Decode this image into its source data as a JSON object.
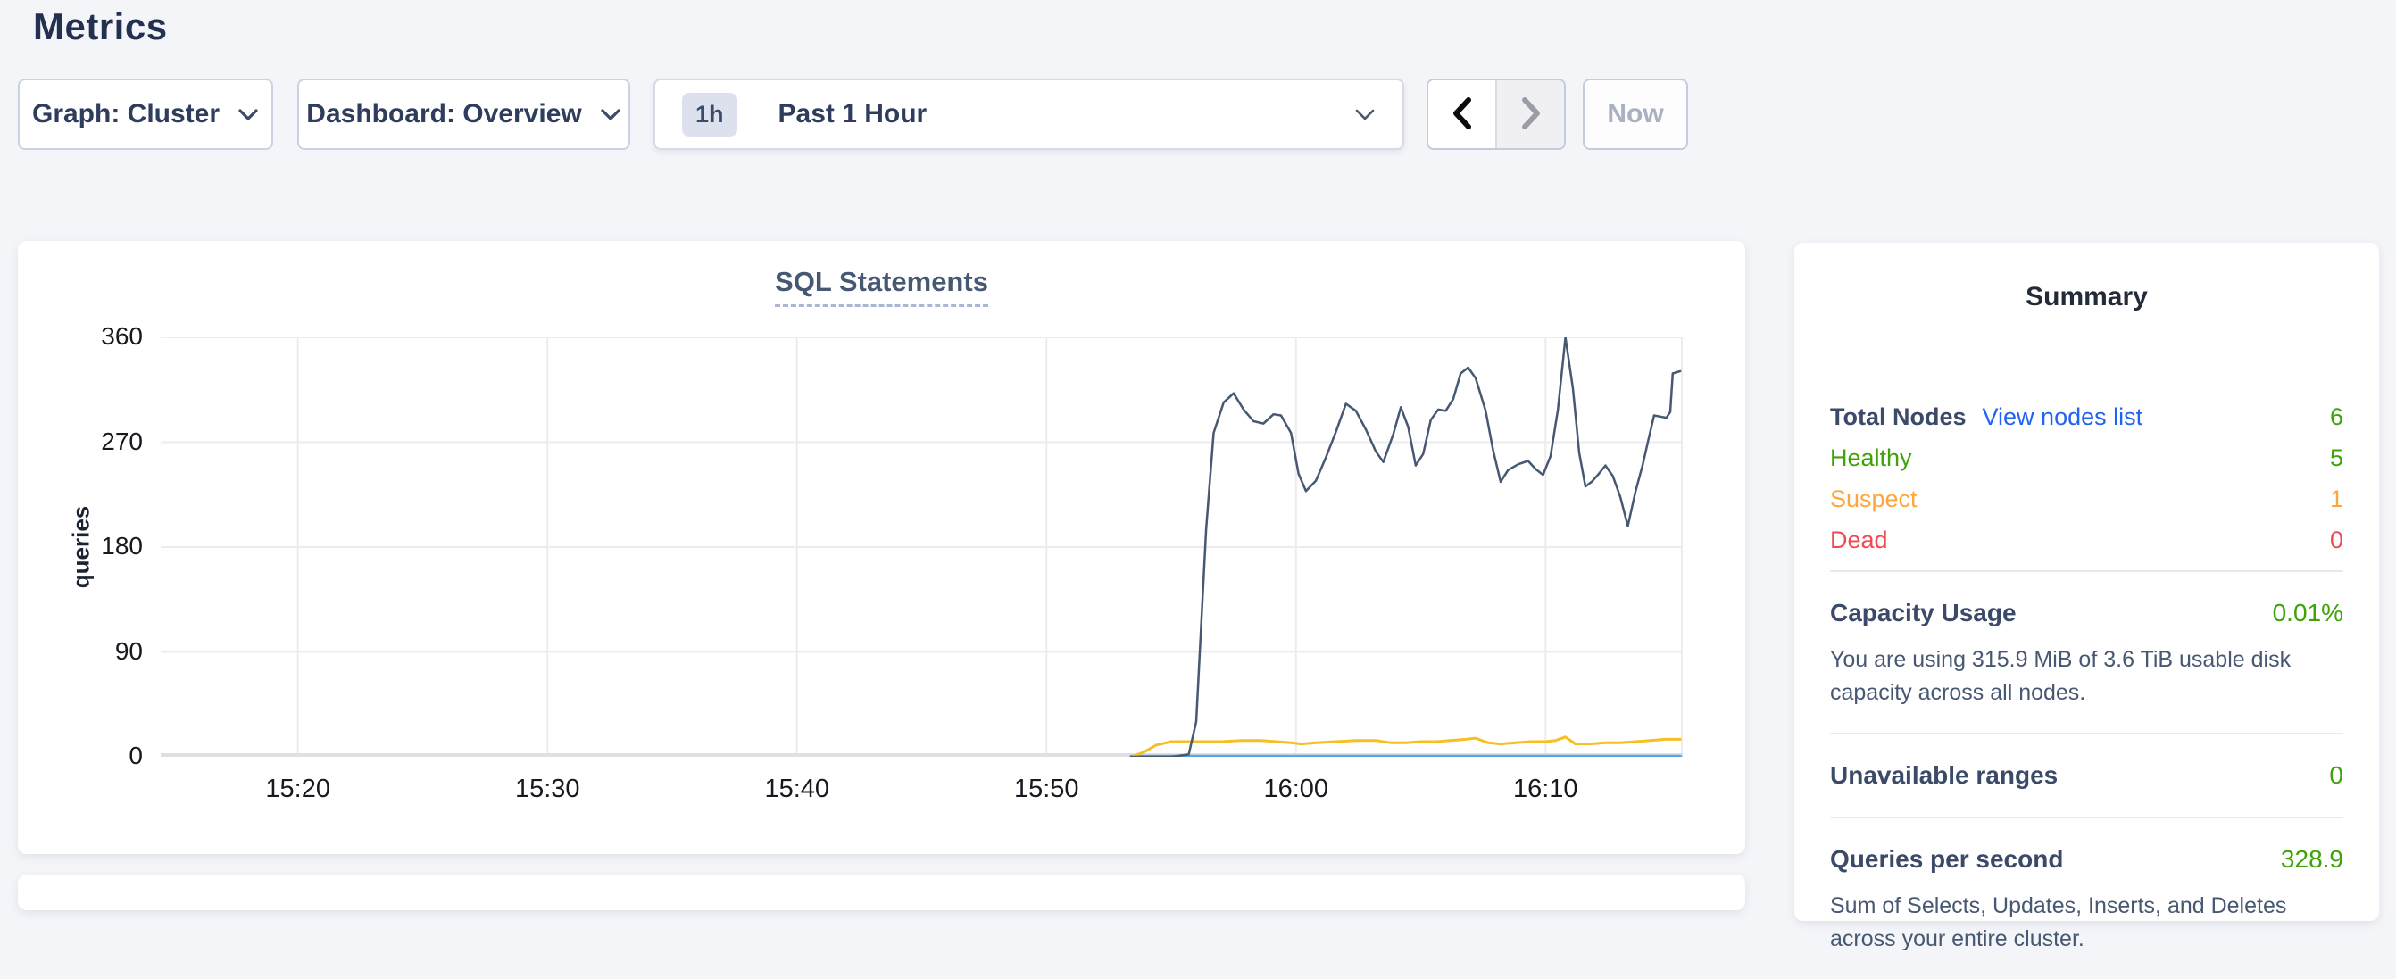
{
  "page": {
    "title": "Metrics"
  },
  "colors": {
    "accent_link": "#2263f0",
    "green": "#3ea308",
    "orange": "#ffa53d",
    "red": "#f04a54",
    "series_navy": "#475872",
    "series_yellow": "#f6bf26",
    "series_blue": "#5aa6dc"
  },
  "toolbar": {
    "graph_dropdown": {
      "label": "Graph: Cluster"
    },
    "dashboard_dropdown": {
      "label": "Dashboard: Overview"
    },
    "time_selector": {
      "badge": "1h",
      "label": "Past 1 Hour"
    },
    "now_label": "Now"
  },
  "chart": {
    "chart_data": {
      "type": "line",
      "title": "SQL Statements",
      "ylabel": "queries",
      "ylim": [
        0,
        360
      ],
      "yticks": [
        0,
        90,
        180,
        270,
        360
      ],
      "xlim": [
        14.5,
        75.5
      ],
      "xticks": [
        {
          "x": 20,
          "label": "15:20"
        },
        {
          "x": 30,
          "label": "15:30"
        },
        {
          "x": 40,
          "label": "15:40"
        },
        {
          "x": 50,
          "label": "15:50"
        },
        {
          "x": 60,
          "label": "16:00"
        },
        {
          "x": 70,
          "label": "16:10"
        }
      ],
      "grid": true,
      "legend": "none",
      "series": [
        {
          "name": "series-blue-flat",
          "color": "#5aa6dc",
          "stroke_width": 4.5,
          "points": [
            [
              53.4,
              0
            ],
            [
              75.4,
              0
            ]
          ]
        },
        {
          "name": "series-yellow",
          "color": "#f6bf26",
          "stroke_width": 3,
          "points": [
            [
              53.4,
              0
            ],
            [
              53.9,
              4
            ],
            [
              54.4,
              10
            ],
            [
              55.0,
              13
            ],
            [
              55.6,
              13
            ],
            [
              56.2,
              13
            ],
            [
              57.0,
              13
            ],
            [
              57.8,
              14
            ],
            [
              58.6,
              14
            ],
            [
              59.2,
              13
            ],
            [
              59.8,
              12
            ],
            [
              60.2,
              11
            ],
            [
              60.8,
              12
            ],
            [
              61.6,
              13
            ],
            [
              62.4,
              14
            ],
            [
              63.2,
              14
            ],
            [
              63.8,
              12
            ],
            [
              64.4,
              12
            ],
            [
              65.0,
              13
            ],
            [
              65.6,
              13
            ],
            [
              66.2,
              14
            ],
            [
              66.8,
              15
            ],
            [
              67.2,
              16
            ],
            [
              67.7,
              12
            ],
            [
              68.2,
              11
            ],
            [
              68.8,
              12
            ],
            [
              69.4,
              13
            ],
            [
              70.0,
              13
            ],
            [
              70.4,
              14
            ],
            [
              70.8,
              17
            ],
            [
              71.2,
              11
            ],
            [
              71.8,
              11
            ],
            [
              72.4,
              12
            ],
            [
              73.0,
              12
            ],
            [
              73.6,
              13
            ],
            [
              74.2,
              14
            ],
            [
              74.8,
              15
            ],
            [
              75.4,
              15
            ]
          ]
        },
        {
          "name": "series-navy",
          "color": "#475872",
          "stroke_width": 2.5,
          "points": [
            [
              53.4,
              0
            ],
            [
              54.2,
              0
            ],
            [
              55.0,
              0
            ],
            [
              55.7,
              2
            ],
            [
              56.0,
              30
            ],
            [
              56.4,
              195
            ],
            [
              56.7,
              278
            ],
            [
              57.1,
              304
            ],
            [
              57.5,
              312
            ],
            [
              57.9,
              298
            ],
            [
              58.3,
              288
            ],
            [
              58.7,
              286
            ],
            [
              59.1,
              294
            ],
            [
              59.4,
              293
            ],
            [
              59.8,
              278
            ],
            [
              60.1,
              243
            ],
            [
              60.4,
              228
            ],
            [
              60.8,
              237
            ],
            [
              61.2,
              257
            ],
            [
              61.6,
              279
            ],
            [
              62.0,
              303
            ],
            [
              62.4,
              297
            ],
            [
              62.8,
              281
            ],
            [
              63.2,
              262
            ],
            [
              63.5,
              253
            ],
            [
              63.9,
              277
            ],
            [
              64.2,
              300
            ],
            [
              64.5,
              283
            ],
            [
              64.8,
              250
            ],
            [
              65.1,
              260
            ],
            [
              65.4,
              289
            ],
            [
              65.7,
              298
            ],
            [
              66.0,
              297
            ],
            [
              66.3,
              307
            ],
            [
              66.6,
              329
            ],
            [
              66.9,
              334
            ],
            [
              67.2,
              325
            ],
            [
              67.6,
              297
            ],
            [
              67.9,
              263
            ],
            [
              68.2,
              236
            ],
            [
              68.5,
              246
            ],
            [
              68.9,
              251
            ],
            [
              69.3,
              254
            ],
            [
              69.6,
              247
            ],
            [
              69.9,
              242
            ],
            [
              70.2,
              258
            ],
            [
              70.5,
              298
            ],
            [
              70.8,
              360
            ],
            [
              71.1,
              316
            ],
            [
              71.35,
              261
            ],
            [
              71.6,
              232
            ],
            [
              71.85,
              236
            ],
            [
              72.1,
              242
            ],
            [
              72.4,
              250
            ],
            [
              72.7,
              241
            ],
            [
              73.0,
              223
            ],
            [
              73.3,
              198
            ],
            [
              73.6,
              227
            ],
            [
              73.9,
              251
            ],
            [
              74.1,
              270
            ],
            [
              74.35,
              293
            ],
            [
              74.6,
              292
            ],
            [
              74.85,
              291
            ],
            [
              75.0,
              296
            ],
            [
              75.1,
              329
            ],
            [
              75.4,
              331
            ]
          ]
        }
      ]
    }
  },
  "summary": {
    "title": "Summary",
    "node_rows": [
      {
        "label": "Total Nodes",
        "link": "View nodes list",
        "value": "6",
        "label_style": "bold-dark",
        "value_style": "green"
      },
      {
        "label": "Healthy",
        "value": "5",
        "label_style": "green",
        "value_style": "green"
      },
      {
        "label": "Suspect",
        "value": "1",
        "label_style": "orange",
        "value_style": "orange"
      },
      {
        "label": "Dead",
        "value": "0",
        "label_style": "red",
        "value_style": "red"
      }
    ],
    "sections": [
      {
        "label": "Capacity Usage",
        "value": "0.01%",
        "description": "You are using 315.9 MiB of 3.6 TiB usable disk capacity across all nodes."
      },
      {
        "label": "Unavailable ranges",
        "value": "0"
      },
      {
        "label": "Queries per second",
        "value": "328.9",
        "description": "Sum of Selects, Updates, Inserts, and Deletes across your entire cluster."
      }
    ]
  }
}
